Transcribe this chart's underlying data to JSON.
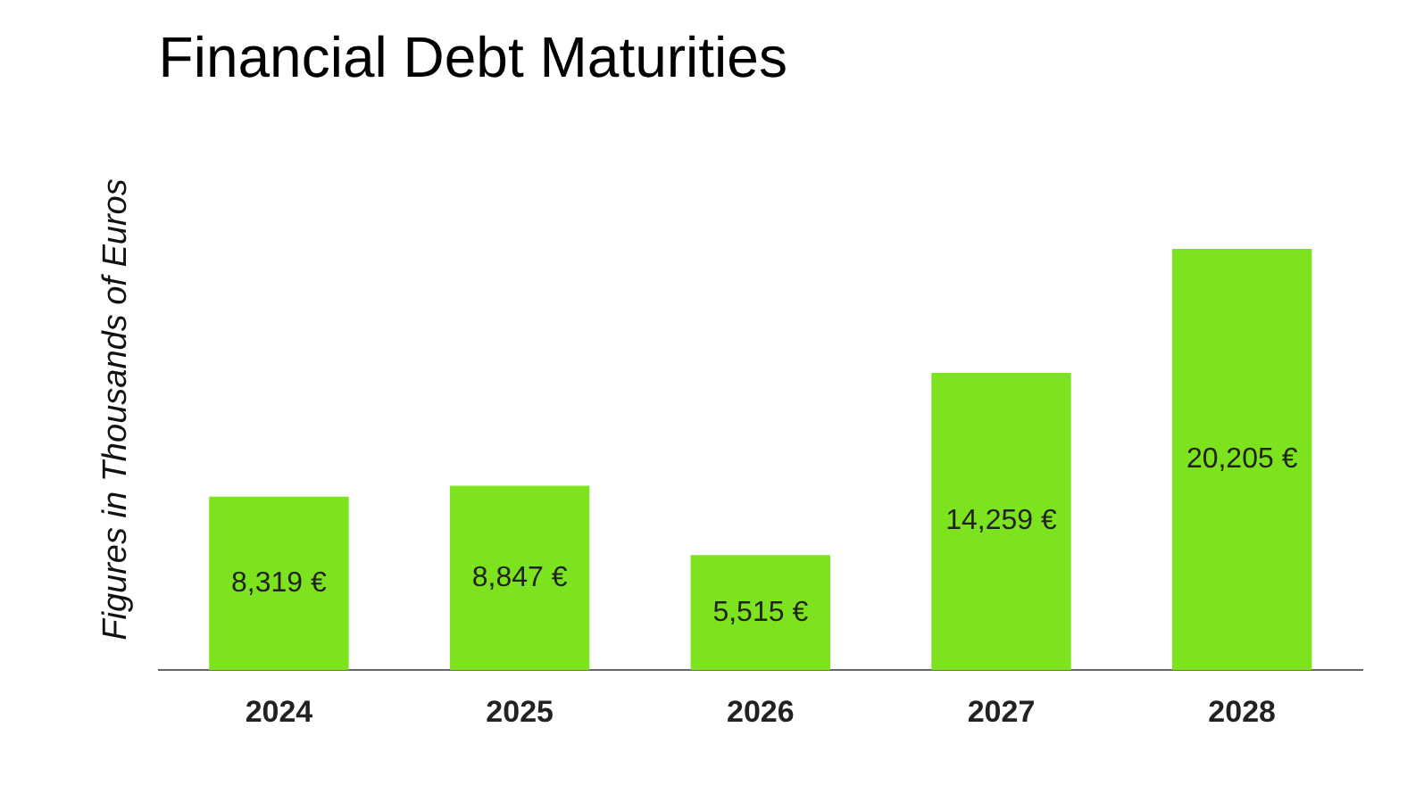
{
  "chart_data": {
    "type": "bar",
    "title": "Financial Debt Maturities",
    "ylabel": "Figures in Thousands of Euros",
    "categories": [
      "2024",
      "2025",
      "2026",
      "2027",
      "2028"
    ],
    "values": [
      8319,
      8847,
      5515,
      14259,
      20205
    ],
    "value_labels": [
      "8,319 €",
      "8,847 €",
      "5,515 €",
      "14,259 €",
      "20,205 €"
    ],
    "color": "#7ee31f",
    "grid": false,
    "legend": false
  }
}
